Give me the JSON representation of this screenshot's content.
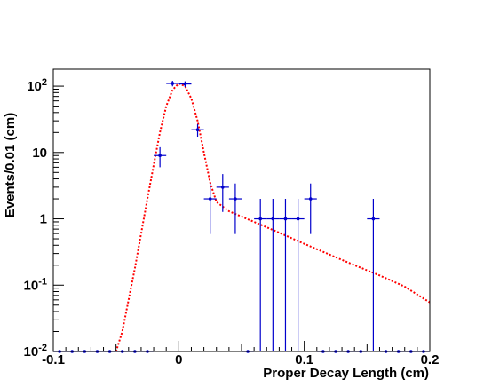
{
  "chart_data": {
    "type": "scatter",
    "title": "",
    "xlabel": "Proper Decay Length (cm)",
    "ylabel": "Events/0.01 (cm)",
    "xlim": [
      -0.1,
      0.2
    ],
    "ylim": [
      0.01,
      180
    ],
    "yscale": "log",
    "grid": false,
    "legend": "none",
    "x_ticks": [
      {
        "value": -0.1,
        "label": "-0.1"
      },
      {
        "value": 0.0,
        "label": "0"
      },
      {
        "value": 0.1,
        "label": "0.1"
      },
      {
        "value": 0.2,
        "label": "0.2"
      }
    ],
    "y_ticks": [
      {
        "value": 0.01,
        "base": "10",
        "exp": "-2"
      },
      {
        "value": 0.1,
        "base": "10",
        "exp": "-1"
      },
      {
        "value": 1,
        "base": "1",
        "exp": ""
      },
      {
        "value": 10,
        "base": "10",
        "exp": ""
      },
      {
        "value": 100,
        "base": "10",
        "exp": "2"
      }
    ],
    "series": [
      {
        "kind": "data",
        "color": "#0000cc",
        "points": [
          {
            "x": -0.095,
            "y": 0.01,
            "err": 0
          },
          {
            "x": -0.085,
            "y": 0.01,
            "err": 0
          },
          {
            "x": -0.075,
            "y": 0.01,
            "err": 0
          },
          {
            "x": -0.065,
            "y": 0.01,
            "err": 0
          },
          {
            "x": -0.055,
            "y": 0.01,
            "err": 0
          },
          {
            "x": -0.045,
            "y": 0.01,
            "err": 0
          },
          {
            "x": -0.035,
            "y": 0.01,
            "err": 0
          },
          {
            "x": -0.025,
            "y": 0.01,
            "err": 0
          },
          {
            "x": -0.015,
            "y": 9,
            "err": 3
          },
          {
            "x": -0.005,
            "y": 110,
            "err": 10.5
          },
          {
            "x": 0.005,
            "y": 108,
            "err": 10.4
          },
          {
            "x": 0.015,
            "y": 22,
            "err": 4.7
          },
          {
            "x": 0.025,
            "y": 2,
            "err": 1.41
          },
          {
            "x": 0.035,
            "y": 3,
            "err": 1.73
          },
          {
            "x": 0.045,
            "y": 2,
            "err": 1.41
          },
          {
            "x": 0.055,
            "y": 0.01,
            "err": 0
          },
          {
            "x": 0.065,
            "y": 1,
            "err": 1
          },
          {
            "x": 0.075,
            "y": 1,
            "err": 1
          },
          {
            "x": 0.085,
            "y": 1,
            "err": 1
          },
          {
            "x": 0.095,
            "y": 1,
            "err": 1
          },
          {
            "x": 0.105,
            "y": 2,
            "err": 1.41
          },
          {
            "x": 0.115,
            "y": 0.01,
            "err": 0
          },
          {
            "x": 0.125,
            "y": 0.01,
            "err": 0
          },
          {
            "x": 0.135,
            "y": 0.01,
            "err": 0
          },
          {
            "x": 0.145,
            "y": 0.01,
            "err": 0
          },
          {
            "x": 0.155,
            "y": 1,
            "err": 1
          },
          {
            "x": 0.165,
            "y": 0.01,
            "err": 0
          },
          {
            "x": 0.175,
            "y": 0.01,
            "err": 0
          },
          {
            "x": 0.185,
            "y": 0.01,
            "err": 0
          },
          {
            "x": 0.195,
            "y": 0.01,
            "err": 0
          }
        ]
      },
      {
        "kind": "fit",
        "color": "#ff0000",
        "style": "dotted",
        "x": [
          -0.05,
          -0.045,
          -0.04,
          -0.035,
          -0.03,
          -0.025,
          -0.02,
          -0.015,
          -0.01,
          -0.005,
          0.0,
          0.005,
          0.01,
          0.015,
          0.02,
          0.025,
          0.03,
          0.04,
          0.06,
          0.08,
          0.1,
          0.12,
          0.14,
          0.16,
          0.18,
          0.2
        ],
        "y": [
          0.01,
          0.02,
          0.06,
          0.18,
          0.6,
          2.0,
          6.5,
          20,
          50,
          88,
          110,
          100,
          65,
          30,
          10,
          3.5,
          1.8,
          1.3,
          0.9,
          0.62,
          0.42,
          0.29,
          0.2,
          0.14,
          0.095,
          0.055
        ]
      }
    ]
  }
}
